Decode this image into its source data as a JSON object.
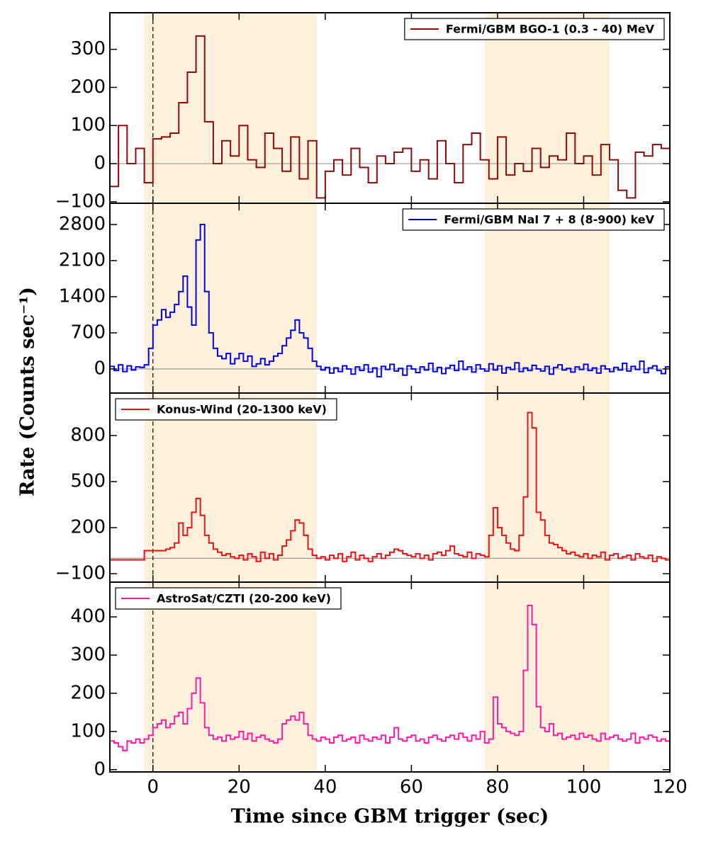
{
  "ylabel": "Rate (Counts sec⁻¹)",
  "shaded_regions": [
    [
      -2,
      38
    ],
    [
      77,
      106
    ]
  ],
  "trigger_line": 0,
  "chart_data": [
    {
      "type": "step",
      "legend": "upper right",
      "zero_line": true,
      "series": [
        {
          "name": "Fermi/GBM BGO-1 (0.3 - 40) MeV",
          "color": "#8b0a0a",
          "bins": [
            -10,
            -8,
            -6,
            -4,
            -2,
            0,
            2,
            4,
            6,
            8,
            10,
            12,
            14,
            16,
            18,
            20,
            22,
            24,
            26,
            28,
            30,
            32,
            34,
            36,
            38,
            40,
            42,
            44,
            46,
            48,
            50,
            52,
            54,
            56,
            58,
            60,
            62,
            64,
            66,
            68,
            70,
            72,
            74,
            76,
            78,
            80,
            82,
            84,
            86,
            88,
            90,
            92,
            94,
            96,
            98,
            100,
            102,
            104,
            106,
            108,
            110,
            112,
            114,
            116,
            118,
            120
          ],
          "values": [
            -60,
            100,
            0,
            40,
            -50,
            65,
            70,
            80,
            160,
            240,
            335,
            110,
            0,
            60,
            20,
            100,
            10,
            -10,
            80,
            40,
            -20,
            70,
            -40,
            60,
            -90,
            -20,
            10,
            -30,
            40,
            -10,
            -50,
            20,
            0,
            30,
            40,
            -20,
            10,
            -40,
            60,
            0,
            -50,
            50,
            80,
            10,
            -40,
            70,
            -30,
            0,
            -20,
            40,
            -10,
            20,
            10,
            80,
            0,
            20,
            -30,
            50,
            10,
            -70,
            -90,
            30,
            20,
            50,
            40
          ]
        }
      ],
      "xlim": [
        -10,
        120
      ],
      "xticks": [
        0,
        20,
        40,
        60,
        80,
        100,
        120
      ],
      "ylim": [
        -104,
        396
      ],
      "yticks": [
        {
          "value": -100,
          "label": "−100"
        },
        0,
        100,
        200,
        300
      ]
    },
    {
      "type": "step",
      "legend": "upper right",
      "zero_line": true,
      "series": [
        {
          "name": "Fermi/GBM NaI 7 + 8 (8-900) keV",
          "color": "#0000ee",
          "bins": [
            -10,
            -9,
            -8,
            -7,
            -6,
            -5,
            -4,
            -3,
            -2,
            -1,
            0,
            1,
            2,
            3,
            4,
            5,
            6,
            7,
            8,
            9,
            10,
            11,
            12,
            13,
            14,
            15,
            16,
            17,
            18,
            19,
            20,
            21,
            22,
            23,
            24,
            25,
            26,
            27,
            28,
            29,
            30,
            31,
            32,
            33,
            34,
            35,
            36,
            37,
            38,
            39,
            40,
            41,
            42,
            43,
            44,
            45,
            46,
            47,
            48,
            49,
            50,
            51,
            52,
            53,
            54,
            55,
            56,
            57,
            58,
            59,
            60,
            61,
            62,
            63,
            64,
            65,
            66,
            67,
            68,
            69,
            70,
            71,
            72,
            73,
            74,
            75,
            76,
            77,
            78,
            79,
            80,
            81,
            82,
            83,
            84,
            85,
            86,
            87,
            88,
            89,
            90,
            91,
            92,
            93,
            94,
            95,
            96,
            97,
            98,
            99,
            100,
            101,
            102,
            103,
            104,
            105,
            106,
            107,
            108,
            109,
            110,
            111,
            112,
            113,
            114,
            115,
            116,
            117,
            118,
            119,
            120
          ],
          "values": [
            50,
            -30,
            80,
            -50,
            60,
            -20,
            40,
            30,
            80,
            400,
            850,
            950,
            1150,
            1000,
            1100,
            1250,
            1500,
            1800,
            1200,
            850,
            2500,
            2800,
            1500,
            700,
            400,
            250,
            200,
            300,
            100,
            200,
            300,
            150,
            250,
            50,
            100,
            200,
            80,
            150,
            250,
            300,
            450,
            600,
            750,
            950,
            700,
            600,
            400,
            150,
            50,
            -20,
            30,
            -80,
            20,
            -50,
            60,
            0,
            -100,
            40,
            -30,
            80,
            -60,
            20,
            -150,
            50,
            -10,
            90,
            -40,
            10,
            -120,
            60,
            0,
            -70,
            40,
            -20,
            110,
            -50,
            30,
            -90,
            20,
            70,
            -30,
            150,
            -10,
            40,
            -60,
            80,
            0,
            -40,
            100,
            -20,
            60,
            -80,
            30,
            -10,
            120,
            -50,
            20,
            -30,
            70,
            0,
            -40,
            50,
            -100,
            30,
            80,
            -20,
            10,
            -60,
            40,
            -10,
            90,
            -30,
            20,
            -80,
            60,
            0,
            -50,
            30,
            -20,
            110,
            -40,
            50,
            -10,
            150,
            -70,
            20,
            60,
            -30,
            -90,
            40
          ]
        }
      ],
      "xlim": [
        -10,
        120
      ],
      "xticks": [
        0,
        20,
        40,
        60,
        80,
        100,
        120
      ],
      "ylim": [
        -467,
        3212
      ],
      "yticks": [
        0,
        700,
        1400,
        2100,
        2800
      ]
    },
    {
      "type": "step",
      "legend": "upper left",
      "zero_line": true,
      "series": [
        {
          "name": "Konus-Wind (20-1300 keV)",
          "color": "#ee1111",
          "bins": [
            -10,
            -9,
            -8,
            -7,
            -6,
            -5,
            -4,
            -3,
            -2,
            -1,
            0,
            1,
            2,
            3,
            4,
            5,
            6,
            7,
            8,
            9,
            10,
            11,
            12,
            13,
            14,
            15,
            16,
            17,
            18,
            19,
            20,
            21,
            22,
            23,
            24,
            25,
            26,
            27,
            28,
            29,
            30,
            31,
            32,
            33,
            34,
            35,
            36,
            37,
            38,
            39,
            40,
            41,
            42,
            43,
            44,
            45,
            46,
            47,
            48,
            49,
            50,
            51,
            52,
            53,
            54,
            55,
            56,
            57,
            58,
            59,
            60,
            61,
            62,
            63,
            64,
            65,
            66,
            67,
            68,
            69,
            70,
            71,
            72,
            73,
            74,
            75,
            76,
            77,
            78,
            79,
            80,
            81,
            82,
            83,
            84,
            85,
            86,
            87,
            88,
            89,
            90,
            91,
            92,
            93,
            94,
            95,
            96,
            97,
            98,
            99,
            100,
            101,
            102,
            103,
            104,
            105,
            106,
            107,
            108,
            109,
            110,
            111,
            112,
            113,
            114,
            115,
            116,
            117,
            118,
            119,
            120
          ],
          "values": [
            -10,
            -10,
            -10,
            -10,
            -10,
            -10,
            -10,
            -10,
            50,
            50,
            50,
            50,
            50,
            60,
            70,
            100,
            230,
            150,
            200,
            300,
            390,
            280,
            150,
            100,
            60,
            40,
            20,
            30,
            10,
            0,
            20,
            -10,
            30,
            10,
            -20,
            40,
            0,
            30,
            -10,
            20,
            80,
            120,
            180,
            250,
            230,
            150,
            60,
            20,
            0,
            10,
            -10,
            20,
            0,
            30,
            -20,
            10,
            40,
            -10,
            20,
            0,
            -20,
            10,
            30,
            0,
            20,
            40,
            60,
            50,
            30,
            20,
            10,
            30,
            0,
            20,
            -10,
            30,
            40,
            20,
            50,
            80,
            30,
            20,
            10,
            40,
            0,
            30,
            20,
            10,
            150,
            330,
            200,
            150,
            100,
            60,
            50,
            150,
            400,
            950,
            850,
            300,
            250,
            150,
            100,
            90,
            70,
            50,
            30,
            40,
            20,
            10,
            30,
            0,
            20,
            10,
            40,
            -10,
            20,
            30,
            0,
            10,
            20,
            -10,
            30,
            10,
            0,
            20,
            -20,
            10,
            0,
            -10
          ]
        }
      ],
      "xlim": [
        -10,
        120
      ],
      "xticks": [
        0,
        20,
        40,
        60,
        80,
        100,
        120
      ],
      "ylim": [
        -155,
        1077
      ],
      "yticks": [
        {
          "value": -100,
          "label": "−100"
        },
        200,
        500,
        800
      ]
    },
    {
      "type": "step",
      "legend": "upper left",
      "zero_line": false,
      "xlabel": "Time since GBM trigger (sec)",
      "series": [
        {
          "name": "AstroSat/CZTI (20-200 keV)",
          "color": "#ff1aa6",
          "bins": [
            -10,
            -9,
            -8,
            -7,
            -6,
            -5,
            -4,
            -3,
            -2,
            -1,
            0,
            1,
            2,
            3,
            4,
            5,
            6,
            7,
            8,
            9,
            10,
            11,
            12,
            13,
            14,
            15,
            16,
            17,
            18,
            19,
            20,
            21,
            22,
            23,
            24,
            25,
            26,
            27,
            28,
            29,
            30,
            31,
            32,
            33,
            34,
            35,
            36,
            37,
            38,
            39,
            40,
            41,
            42,
            43,
            44,
            45,
            46,
            47,
            48,
            49,
            50,
            51,
            52,
            53,
            54,
            55,
            56,
            57,
            58,
            59,
            60,
            61,
            62,
            63,
            64,
            65,
            66,
            67,
            68,
            69,
            70,
            71,
            72,
            73,
            74,
            75,
            76,
            77,
            78,
            79,
            80,
            81,
            82,
            83,
            84,
            85,
            86,
            87,
            88,
            89,
            90,
            91,
            92,
            93,
            94,
            95,
            96,
            97,
            98,
            99,
            100,
            101,
            102,
            103,
            104,
            105,
            106,
            107,
            108,
            109,
            110,
            111,
            112,
            113,
            114,
            115,
            116,
            117,
            118,
            119,
            120
          ],
          "values": [
            75,
            70,
            60,
            50,
            75,
            70,
            80,
            70,
            80,
            90,
            110,
            120,
            130,
            110,
            120,
            140,
            150,
            120,
            160,
            200,
            240,
            175,
            110,
            90,
            80,
            85,
            75,
            90,
            80,
            85,
            100,
            80,
            95,
            75,
            85,
            90,
            80,
            75,
            70,
            80,
            120,
            130,
            140,
            130,
            150,
            120,
            90,
            80,
            75,
            85,
            80,
            70,
            85,
            90,
            75,
            80,
            85,
            70,
            90,
            80,
            75,
            85,
            80,
            90,
            70,
            85,
            110,
            80,
            75,
            85,
            90,
            75,
            80,
            70,
            85,
            90,
            80,
            75,
            85,
            90,
            80,
            95,
            85,
            75,
            90,
            80,
            100,
            70,
            80,
            190,
            120,
            110,
            100,
            95,
            90,
            100,
            260,
            430,
            380,
            165,
            110,
            100,
            120,
            90,
            95,
            80,
            85,
            90,
            80,
            95,
            85,
            90,
            80,
            75,
            95,
            80,
            85,
            90,
            80,
            75,
            80,
            95,
            70,
            85,
            80,
            90,
            85,
            75,
            80,
            75
          ]
        }
      ],
      "xlim": [
        -10,
        120
      ],
      "xticks": [
        0,
        20,
        40,
        60,
        80,
        100,
        120
      ],
      "ylim": [
        -6,
        491
      ],
      "yticks": [
        0,
        100,
        200,
        300,
        400
      ]
    }
  ]
}
